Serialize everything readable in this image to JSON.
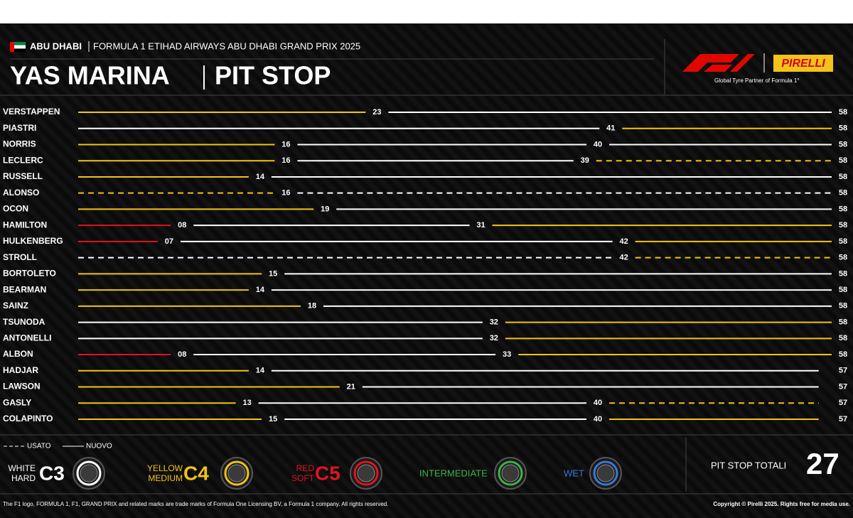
{
  "header": {
    "location": "ABU DHABI",
    "event": "FORMULA 1 ETIHAD AIRWAYS ABU DHABI GRAND PRIX 2025",
    "title_left": "YAS MARINA",
    "title_right": "PIT STOP",
    "pirelli": "PIRELLI",
    "partner": "Global Tyre Partner of Formula 1°"
  },
  "chart_data": {
    "type": "stint",
    "xlim": [
      0,
      58
    ],
    "series": [
      {
        "name": "VERSTAPPEN",
        "values": [
          23,
          58
        ],
        "colors": [
          "#f2c318",
          "#ffffff"
        ],
        "dashed": [
          false,
          false
        ]
      },
      {
        "name": "PIASTRI",
        "values": [
          41,
          58
        ],
        "colors": [
          "#ffffff",
          "#f2c318"
        ],
        "dashed": [
          false,
          false
        ]
      },
      {
        "name": "NORRIS",
        "values": [
          16,
          40,
          58
        ],
        "colors": [
          "#f2c318",
          "#ffffff",
          "#ffffff"
        ],
        "dashed": [
          false,
          false,
          false
        ]
      },
      {
        "name": "LECLERC",
        "values": [
          16,
          39,
          58
        ],
        "colors": [
          "#f2c318",
          "#ffffff",
          "#f2c318"
        ],
        "dashed": [
          false,
          false,
          true
        ]
      },
      {
        "name": "RUSSELL",
        "values": [
          14,
          58
        ],
        "colors": [
          "#f2c318",
          "#ffffff"
        ],
        "dashed": [
          false,
          false
        ]
      },
      {
        "name": "ALONSO",
        "values": [
          16,
          58
        ],
        "colors": [
          "#f2c318",
          "#ffffff"
        ],
        "dashed": [
          true,
          true
        ]
      },
      {
        "name": "OCON",
        "values": [
          19,
          58
        ],
        "colors": [
          "#f2c318",
          "#ffffff"
        ],
        "dashed": [
          false,
          false
        ]
      },
      {
        "name": "HAMILTON",
        "values": [
          8,
          31,
          58
        ],
        "value_labels": [
          "08",
          "31",
          "58"
        ],
        "colors": [
          "#e0141e",
          "#ffffff",
          "#f2c318"
        ],
        "dashed": [
          false,
          false,
          false
        ]
      },
      {
        "name": "HULKENBERG",
        "values": [
          7,
          42,
          58
        ],
        "value_labels": [
          "07",
          "42",
          "58"
        ],
        "colors": [
          "#e0141e",
          "#ffffff",
          "#f2c318"
        ],
        "dashed": [
          false,
          false,
          false
        ]
      },
      {
        "name": "STROLL",
        "values": [
          42,
          58
        ],
        "colors": [
          "#ffffff",
          "#f2c318"
        ],
        "dashed": [
          true,
          true
        ]
      },
      {
        "name": "BORTOLETO",
        "values": [
          15,
          58
        ],
        "colors": [
          "#f2c318",
          "#ffffff"
        ],
        "dashed": [
          false,
          false
        ]
      },
      {
        "name": "BEARMAN",
        "values": [
          14,
          58
        ],
        "colors": [
          "#f2c318",
          "#ffffff"
        ],
        "dashed": [
          false,
          false
        ]
      },
      {
        "name": "SAINZ",
        "values": [
          18,
          58
        ],
        "colors": [
          "#f2c318",
          "#ffffff"
        ],
        "dashed": [
          false,
          false
        ]
      },
      {
        "name": "TSUNODA",
        "values": [
          32,
          58
        ],
        "colors": [
          "#ffffff",
          "#f2c318"
        ],
        "dashed": [
          false,
          false
        ]
      },
      {
        "name": "ANTONELLI",
        "values": [
          32,
          58
        ],
        "colors": [
          "#ffffff",
          "#f2c318"
        ],
        "dashed": [
          false,
          false
        ]
      },
      {
        "name": "ALBON",
        "values": [
          8,
          33,
          58
        ],
        "value_labels": [
          "08",
          "33",
          "58"
        ],
        "colors": [
          "#e0141e",
          "#ffffff",
          "#f2c318"
        ],
        "dashed": [
          false,
          false,
          false
        ]
      },
      {
        "name": "HADJAR",
        "values": [
          14,
          57
        ],
        "colors": [
          "#f2c318",
          "#ffffff"
        ],
        "dashed": [
          false,
          false
        ]
      },
      {
        "name": "LAWSON",
        "values": [
          21,
          57
        ],
        "colors": [
          "#f2c318",
          "#ffffff"
        ],
        "dashed": [
          false,
          false
        ]
      },
      {
        "name": "GASLY",
        "values": [
          13,
          40,
          57
        ],
        "colors": [
          "#f2c318",
          "#ffffff",
          "#f2c318"
        ],
        "dashed": [
          false,
          false,
          true
        ]
      },
      {
        "name": "COLAPINTO",
        "values": [
          15,
          40,
          57
        ],
        "colors": [
          "#f2c318",
          "#ffffff",
          "#f2c318"
        ],
        "dashed": [
          false,
          false,
          false
        ]
      }
    ],
    "line_legend": {
      "used": "USATO",
      "new": "NUOVO"
    },
    "compounds": [
      {
        "line1": "WHITE",
        "line2": "HARD",
        "code": "C3",
        "color": "#ffffff"
      },
      {
        "line1": "YELLOW",
        "line2": "MEDIUM",
        "code": "C4",
        "color": "#f2c318"
      },
      {
        "line1": "RED",
        "line2": "SOFT",
        "code": "C5",
        "color": "#e0141e"
      },
      {
        "name": "INTERMEDIATE",
        "color": "#3fb04a"
      },
      {
        "name": "WET",
        "color": "#3a78d8"
      }
    ],
    "total": {
      "label": "PIT STOP TOTALI",
      "value": 27
    }
  },
  "footer": {
    "left": "The F1 logo, FORMULA 1, F1, GRAND PRIX and related marks are trade marks of Formula One Licensing BV, a Formula 1 company. All rights reserved.",
    "right": "Copyright © Pirelli 2025. Rights free for media use."
  }
}
